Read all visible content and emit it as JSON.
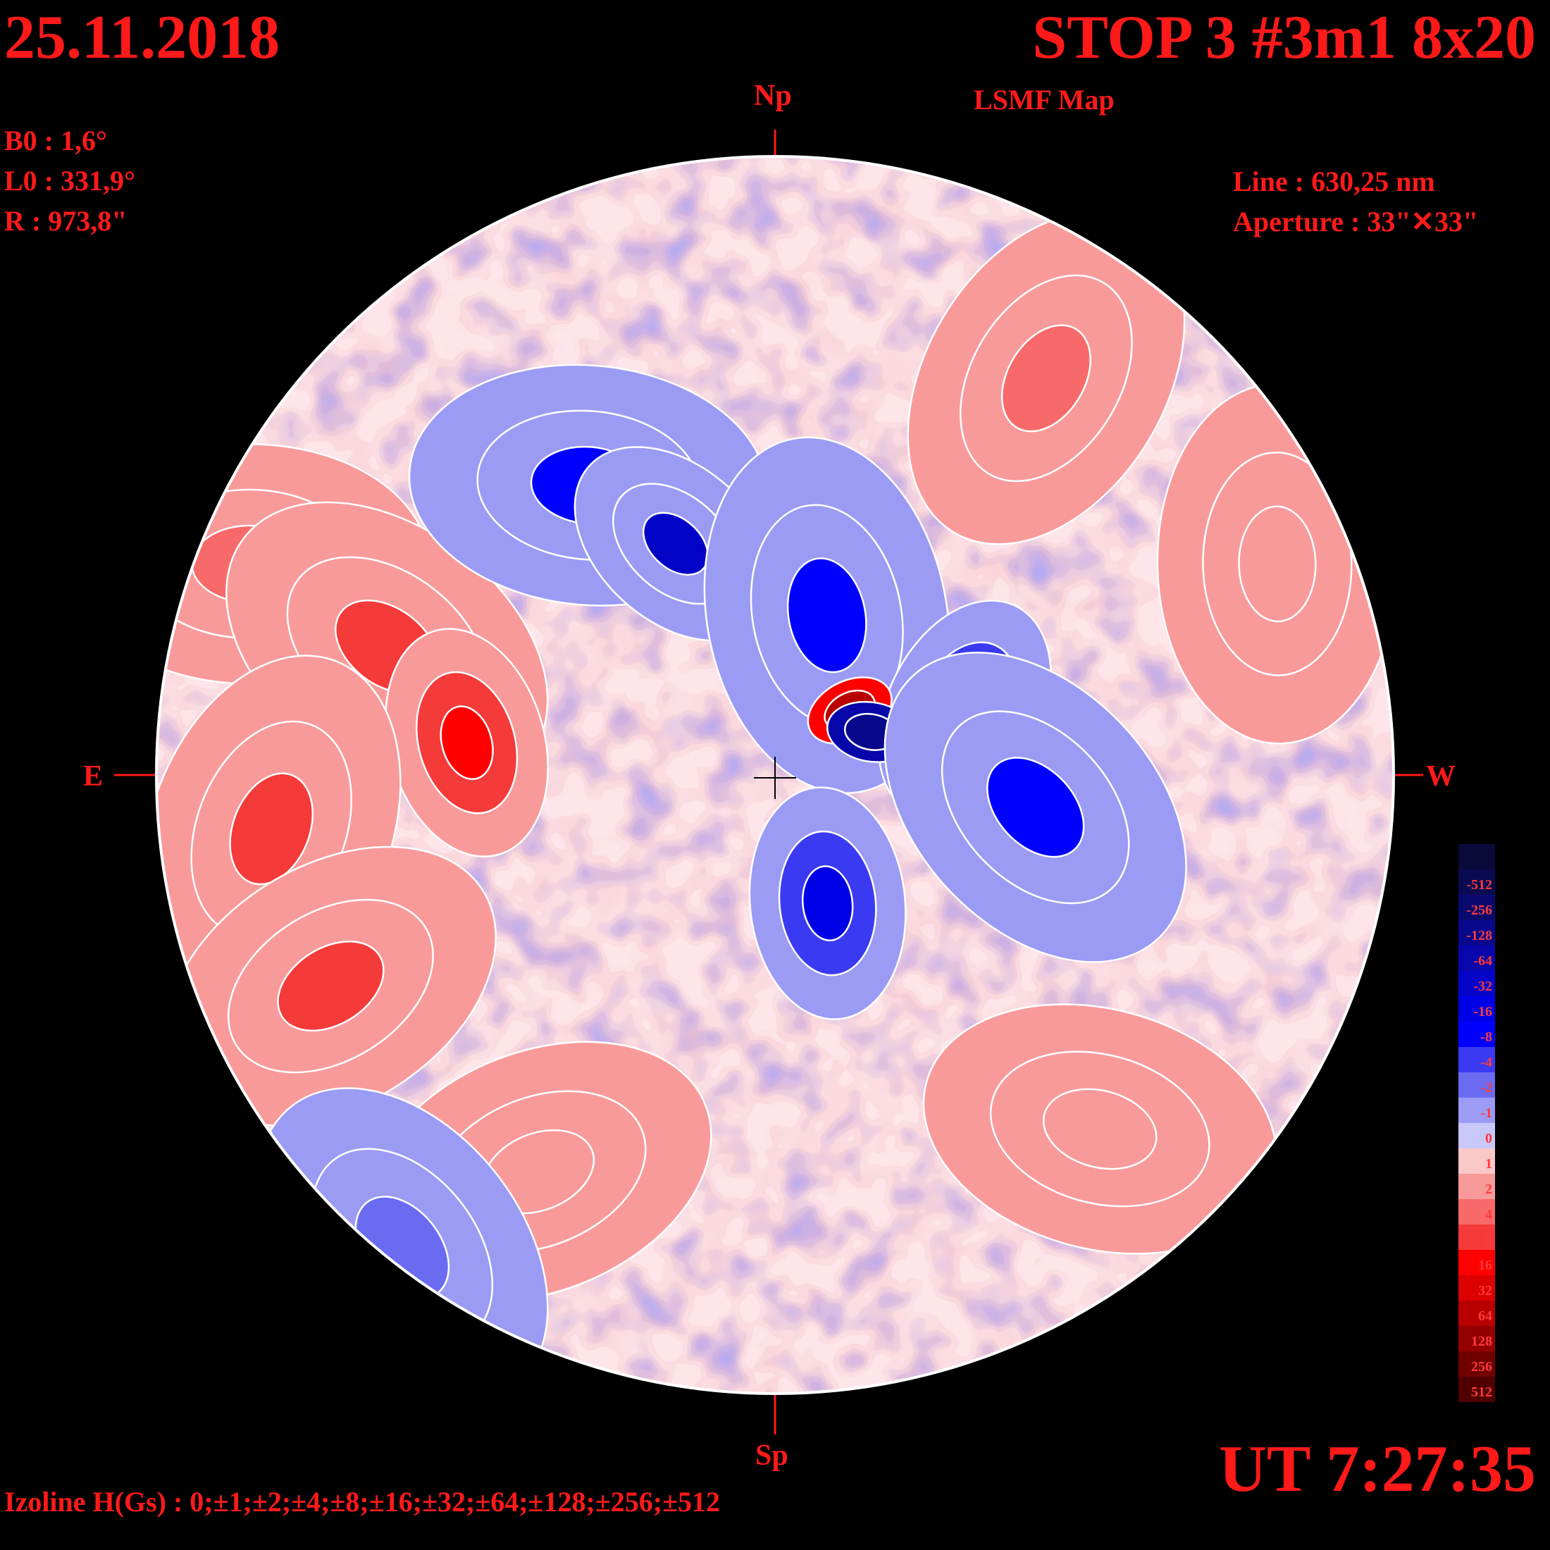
{
  "header": {
    "date": "25.11.2018",
    "title": "STOP 3 #3m1 8x20",
    "subtitle": "LSMF  Map"
  },
  "parameters": {
    "b0": "B0 : 1,6°",
    "l0": "L0 : 331,9°",
    "r": "R  : 973,8\"",
    "line": "Line :  630,25 nm",
    "aperture": "Aperture : 33\"✕33\""
  },
  "directions": {
    "north": "Np",
    "south": "Sp",
    "east": "E",
    "west": "W"
  },
  "time": "UT 7:27:35",
  "izoline": "Izoline H(Gs) : 0;±1;±2;±4;±8;±16;±32;±64;±128;±256;±512",
  "legend": {
    "levels": [
      {
        "label": "",
        "color": "#0a0a3a"
      },
      {
        "label": "-512",
        "color": "#0a0a52"
      },
      {
        "label": "-256",
        "color": "#0a0a6e"
      },
      {
        "label": "-128",
        "color": "#08088c"
      },
      {
        "label": "-64",
        "color": "#0606aa"
      },
      {
        "label": "-32",
        "color": "#0303c8"
      },
      {
        "label": "-16",
        "color": "#0000e6"
      },
      {
        "label": "-8",
        "color": "#0000ff"
      },
      {
        "label": "-4",
        "color": "#3a3af2"
      },
      {
        "label": "-2",
        "color": "#6b6bf2"
      },
      {
        "label": "-1",
        "color": "#9b9bf4"
      },
      {
        "label": "0",
        "color": "#c8c8f8"
      },
      {
        "label": "1",
        "color": "#fbc8c8"
      },
      {
        "label": "2",
        "color": "#f99a9a"
      },
      {
        "label": "4",
        "color": "#f86a6a"
      },
      {
        "label": "8",
        "color": "#f53a3a"
      },
      {
        "label": "16",
        "color": "#ff0000"
      },
      {
        "label": "32",
        "color": "#dc0000"
      },
      {
        "label": "64",
        "color": "#b80000"
      },
      {
        "label": "128",
        "color": "#940000"
      },
      {
        "label": "256",
        "color": "#700000"
      },
      {
        "label": "512",
        "color": "#500000"
      }
    ]
  },
  "map": {
    "regions": [
      {
        "lon": -65,
        "lat": 20,
        "level": 4
      },
      {
        "lon": -40,
        "lat": 12,
        "level": 8
      },
      {
        "lon": -30,
        "lat": 3,
        "level": 16
      },
      {
        "lon": -55,
        "lat": -5,
        "level": 8
      },
      {
        "lon": -50,
        "lat": -20,
        "level": 8
      },
      {
        "lon": -20,
        "lat": 28,
        "level": -8
      },
      {
        "lon": -10,
        "lat": 22,
        "level": -32
      },
      {
        "lon": 5,
        "lat": 15,
        "level": -8
      },
      {
        "lon": 18,
        "lat": 6,
        "level": -16
      },
      {
        "lon": 7,
        "lat": 6,
        "level": 64
      },
      {
        "lon": 9,
        "lat": 4,
        "level": -128
      },
      {
        "lon": 25,
        "lat": -3,
        "level": -8
      },
      {
        "lon": 5,
        "lat": -12,
        "level": -16
      },
      {
        "lon": 35,
        "lat": 40,
        "level": 4
      },
      {
        "lon": -30,
        "lat": -40,
        "level": 2
      },
      {
        "lon": 40,
        "lat": -35,
        "level": 2
      },
      {
        "lon": -70,
        "lat": -50,
        "level": -2
      },
      {
        "lon": 60,
        "lat": 20,
        "level": 2
      }
    ]
  }
}
